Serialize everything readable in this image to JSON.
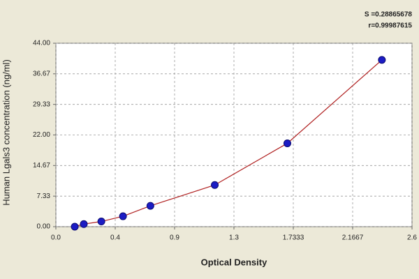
{
  "chart_data": {
    "type": "scatter",
    "x_label": "Optical Density",
    "y_label": "Human Lgals3 concentration (ng/ml)",
    "annotations": [
      "S =0.28865678",
      "r=0.99987615"
    ],
    "x": [
      0.138,
      0.204,
      0.332,
      0.49,
      0.69,
      1.16,
      1.69,
      2.38
    ],
    "series": [
      {
        "color": "#1c1cc4",
        "line_color": "#b02020",
        "values": [
          0,
          0.625,
          1.25,
          2.5,
          5,
          10,
          20,
          40
        ]
      }
    ],
    "xlim": [
      0,
      2.6
    ],
    "xticks": [
      {
        "value": 0,
        "label": "0.0"
      },
      {
        "value": 0.4333,
        "label": "0.4"
      },
      {
        "value": 0.8667,
        "label": "0.9"
      },
      1.3,
      1.7333,
      2.1667,
      2.6
    ],
    "ylim": [
      0,
      44
    ],
    "yticks": [
      {
        "value": 0,
        "label": "0.00"
      },
      7.33,
      14.67,
      {
        "value": 22,
        "label": "22.00"
      },
      29.33,
      36.67,
      {
        "value": 44,
        "label": "44.00"
      }
    ],
    "grid": true
  }
}
